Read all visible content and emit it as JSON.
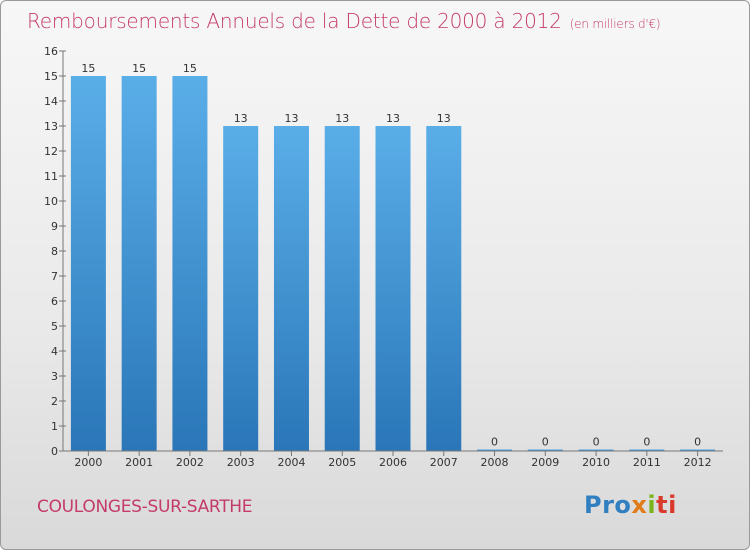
{
  "title": "Remboursements Annuels de la Dette de 2000 à 2012",
  "subtitle": "(en milliers d'€)",
  "city": "COULONGES-SUR-SARTHE",
  "logo": {
    "p1": "Pro",
    "p2": "x",
    "p3": "i",
    "p4": "ti"
  },
  "colors": {
    "bar_top": "#5aaee8",
    "bar_bottom": "#2a76b8",
    "title": "#c43a6b"
  },
  "chart_data": {
    "type": "bar",
    "title": "Remboursements Annuels de la Dette de 2000 à 2012",
    "xlabel": "",
    "ylabel": "",
    "ylim": [
      0,
      16
    ],
    "yticks": [
      0,
      1,
      2,
      3,
      4,
      5,
      6,
      7,
      8,
      9,
      10,
      11,
      12,
      13,
      14,
      15,
      16
    ],
    "categories": [
      "2000",
      "2001",
      "2002",
      "2003",
      "2004",
      "2005",
      "2006",
      "2007",
      "2008",
      "2009",
      "2010",
      "2011",
      "2012"
    ],
    "values": [
      15,
      15,
      15,
      13,
      13,
      13,
      13,
      13,
      0,
      0,
      0,
      0,
      0
    ],
    "grid": false,
    "legend": "none"
  }
}
